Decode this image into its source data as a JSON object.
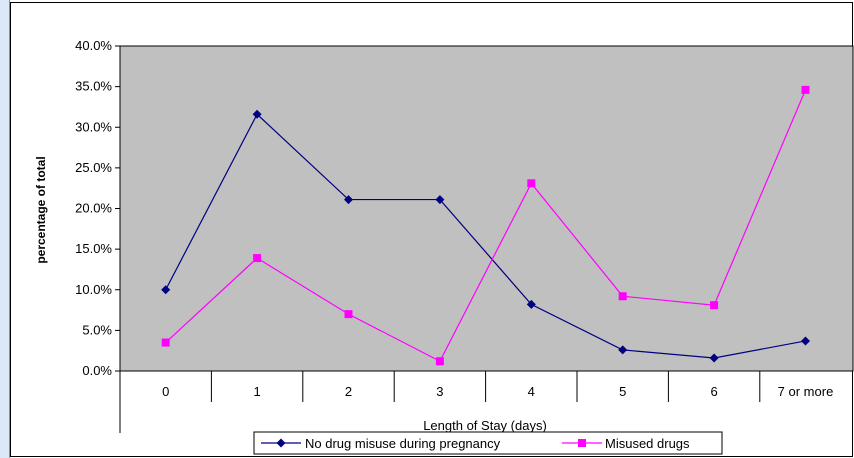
{
  "chart_data": {
    "type": "line",
    "categories": [
      "0",
      "1",
      "2",
      "3",
      "4",
      "5",
      "6",
      "7 or more"
    ],
    "series": [
      {
        "name": "No drug misuse during pregnancy",
        "values": [
          10.0,
          31.6,
          21.1,
          21.1,
          8.2,
          2.6,
          1.6,
          3.7
        ],
        "color": "#000080",
        "marker": "diamond"
      },
      {
        "name": "Misused drugs",
        "values": [
          3.5,
          13.9,
          7.0,
          1.2,
          23.1,
          9.2,
          8.1,
          34.6
        ],
        "color": "#ff00ff",
        "marker": "square"
      }
    ],
    "yticks": [
      "0.0%",
      "5.0%",
      "10.0%",
      "15.0%",
      "20.0%",
      "25.0%",
      "30.0%",
      "35.0%",
      "40.0%"
    ],
    "ylim": [
      0,
      40
    ],
    "xlabel": "Length of Stay (days)",
    "ylabel": "percentage of total",
    "title": "",
    "legend_position": "bottom",
    "plot_background": "#c0c0c0",
    "grid": false
  }
}
